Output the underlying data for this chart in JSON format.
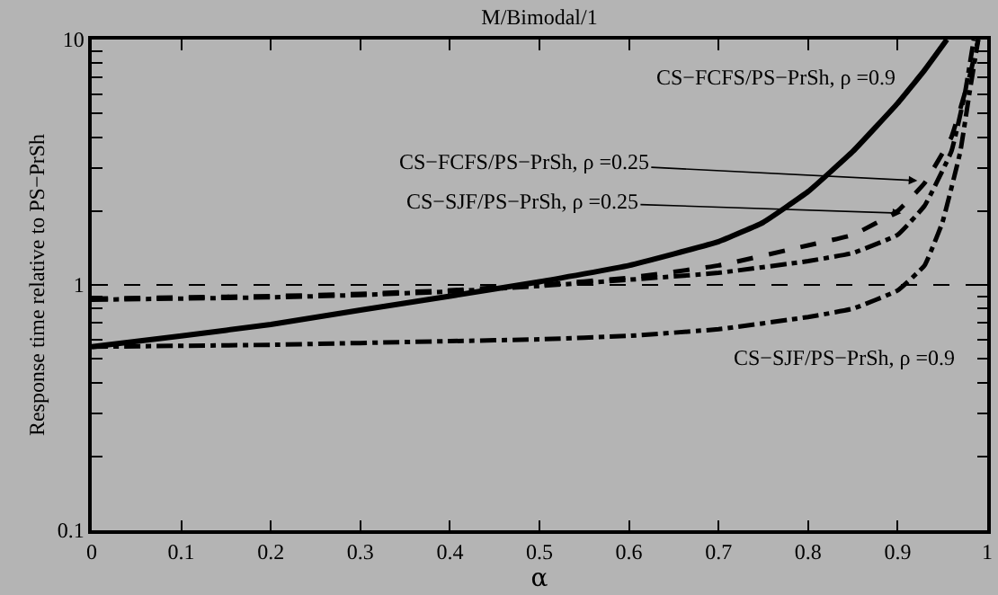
{
  "chart_data": {
    "type": "line",
    "title": "M/Bimodal/1",
    "xlabel": "α",
    "ylabel": "Response time relative to PS−PrSh",
    "log": "y",
    "grid": false,
    "marker": "none",
    "xlim": [
      0,
      1
    ],
    "xticks": [
      0,
      0.1,
      0.2,
      0.3,
      0.4,
      0.5,
      0.6,
      0.7,
      0.8,
      0.9,
      1
    ],
    "ylim": [
      0.1,
      10
    ],
    "yticks": [
      0.1,
      {
        "value": 0.2,
        "label": null
      },
      {
        "value": 0.3,
        "label": null
      },
      {
        "value": 0.4,
        "label": null
      },
      {
        "value": 0.5,
        "label": null
      },
      {
        "value": 0.6,
        "label": null
      },
      {
        "value": 0.7,
        "label": null
      },
      {
        "value": 0.8,
        "label": null
      },
      {
        "value": 0.9,
        "label": null
      },
      1,
      {
        "value": 2,
        "label": null
      },
      {
        "value": 3,
        "label": null
      },
      {
        "value": 4,
        "label": null
      },
      {
        "value": 5,
        "label": null
      },
      {
        "value": 6,
        "label": null
      },
      {
        "value": 7,
        "label": null
      },
      {
        "value": 8,
        "label": null
      },
      {
        "value": 9,
        "label": null
      },
      10
    ],
    "series": [
      {
        "color": "#000000",
        "line_style": "solid",
        "x": [
          0,
          0.1,
          0.2,
          0.3,
          0.4,
          0.5,
          0.6,
          0.7,
          0.75,
          0.8,
          0.85,
          0.9,
          0.93,
          0.955
        ],
        "values": [
          0.56,
          0.62,
          0.69,
          0.79,
          0.9,
          1.03,
          1.2,
          1.5,
          1.8,
          2.4,
          3.5,
          5.5,
          7.5,
          10
        ]
      },
      {
        "color": "#000000",
        "line_style": "dashed",
        "x": [
          0,
          0.1,
          0.2,
          0.3,
          0.4,
          0.5,
          0.6,
          0.7,
          0.8,
          0.85,
          0.9,
          0.93,
          0.96,
          0.98,
          0.99
        ],
        "values": [
          0.88,
          0.89,
          0.9,
          0.92,
          0.95,
          1.0,
          1.07,
          1.2,
          1.45,
          1.6,
          2.0,
          2.6,
          4,
          7,
          10
        ]
      },
      {
        "color": "#000000",
        "line_style": "dotted",
        "x": [
          0,
          0.1,
          0.2,
          0.3,
          0.4,
          0.5,
          0.6,
          0.7,
          0.8,
          0.85,
          0.9,
          0.93,
          0.96,
          0.975,
          0.985
        ],
        "values": [
          0.87,
          0.88,
          0.89,
          0.91,
          0.94,
          0.99,
          1.05,
          1.12,
          1.25,
          1.35,
          1.6,
          2.1,
          3.5,
          6,
          10
        ]
      },
      {
        "color": "#000000",
        "line_style": "dotted",
        "x": [
          0,
          0.2,
          0.4,
          0.5,
          0.6,
          0.7,
          0.8,
          0.85,
          0.9,
          0.93,
          0.95,
          0.97,
          0.98,
          0.99
        ],
        "values": [
          0.56,
          0.57,
          0.59,
          0.6,
          0.62,
          0.66,
          0.74,
          0.8,
          0.95,
          1.2,
          1.8,
          3.5,
          6,
          10
        ]
      }
    ],
    "ref_lines": [
      {
        "axis": "y",
        "value": 1,
        "color": "#000000",
        "line_style": "dashed"
      }
    ],
    "annotations": [
      {
        "text": "CS−FCFS/PS−PrSh, ρ =0.9",
        "x": 0.93,
        "y": 7.5
      },
      {
        "text": "CS−FCFS/PS−PrSh, ρ =0.25",
        "x": 0.922,
        "y": 2.66
      },
      {
        "text": "CS−SJF/PS−PrSh, ρ =0.25",
        "x": 0.904,
        "y": 1.96
      },
      {
        "text": "CS−SJF/PS−PrSh, ρ =0.9",
        "x": 0.9,
        "y": 0.95
      }
    ]
  }
}
